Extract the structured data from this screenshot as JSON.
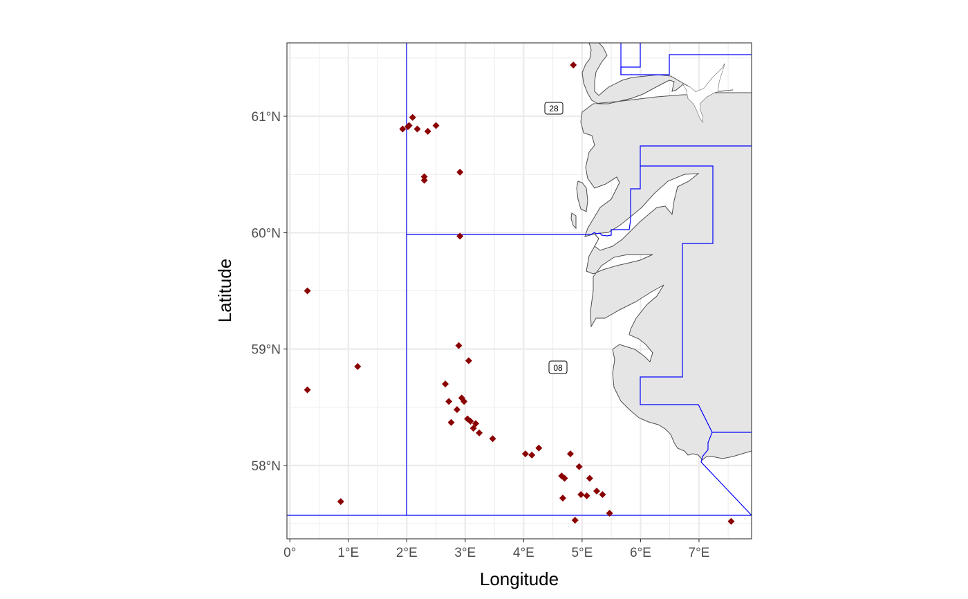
{
  "chart_data": {
    "type": "scatter",
    "title": "",
    "xlabel": "Longitude",
    "ylabel": "Latitude",
    "xlim": [
      -0.05,
      7.9
    ],
    "ylim": [
      57.37,
      61.63
    ],
    "x_ticks": [
      {
        "value": 0,
        "label": "0°"
      },
      {
        "value": 1,
        "label": "1°E"
      },
      {
        "value": 2,
        "label": "2°E"
      },
      {
        "value": 3,
        "label": "3°E"
      },
      {
        "value": 4,
        "label": "4°E"
      },
      {
        "value": 5,
        "label": "5°E"
      },
      {
        "value": 6,
        "label": "6°E"
      },
      {
        "value": 7,
        "label": "7°E"
      }
    ],
    "y_ticks": [
      {
        "value": 58,
        "label": "58°N"
      },
      {
        "value": 59,
        "label": "59°N"
      },
      {
        "value": 60,
        "label": "60°N"
      },
      {
        "value": 61,
        "label": "61°N"
      }
    ],
    "grid": true,
    "colors": {
      "point": "#8b0000",
      "boundary": "#0000ff",
      "land_fill": "#e5e5e5",
      "land_outline": "#4d4d4d",
      "grid": "#ebebeb"
    },
    "area_labels": [
      {
        "text": "28",
        "lon": 4.5,
        "lat": 61.06
      },
      {
        "text": "08",
        "lon": 4.58,
        "lat": 58.84
      }
    ],
    "points": [
      [
        4.85,
        61.44
      ],
      [
        1.93,
        60.89
      ],
      [
        2.02,
        60.91
      ],
      [
        2.04,
        60.92
      ],
      [
        2.1,
        60.99
      ],
      [
        2.18,
        60.89
      ],
      [
        2.36,
        60.87
      ],
      [
        2.5,
        60.92
      ],
      [
        2.3,
        60.48
      ],
      [
        2.3,
        60.45
      ],
      [
        2.91,
        60.52
      ],
      [
        2.91,
        59.97
      ],
      [
        0.3,
        59.5
      ],
      [
        0.3,
        58.65
      ],
      [
        1.16,
        58.85
      ],
      [
        0.87,
        57.69
      ],
      [
        2.89,
        59.03
      ],
      [
        3.06,
        58.9
      ],
      [
        2.66,
        58.7
      ],
      [
        2.72,
        58.55
      ],
      [
        2.94,
        58.58
      ],
      [
        2.98,
        58.55
      ],
      [
        2.86,
        58.48
      ],
      [
        3.04,
        58.4
      ],
      [
        3.09,
        58.38
      ],
      [
        2.76,
        58.37
      ],
      [
        3.18,
        58.36
      ],
      [
        3.14,
        58.32
      ],
      [
        3.24,
        58.28
      ],
      [
        3.47,
        58.23
      ],
      [
        4.03,
        58.1
      ],
      [
        4.14,
        58.09
      ],
      [
        4.26,
        58.15
      ],
      [
        4.8,
        58.1
      ],
      [
        4.95,
        57.99
      ],
      [
        4.65,
        57.91
      ],
      [
        4.7,
        57.89
      ],
      [
        5.13,
        57.89
      ],
      [
        4.98,
        57.75
      ],
      [
        5.08,
        57.74
      ],
      [
        5.25,
        57.78
      ],
      [
        5.35,
        57.75
      ],
      [
        4.67,
        57.72
      ],
      [
        5.47,
        57.59
      ],
      [
        4.88,
        57.53
      ],
      [
        7.55,
        57.52
      ]
    ]
  }
}
